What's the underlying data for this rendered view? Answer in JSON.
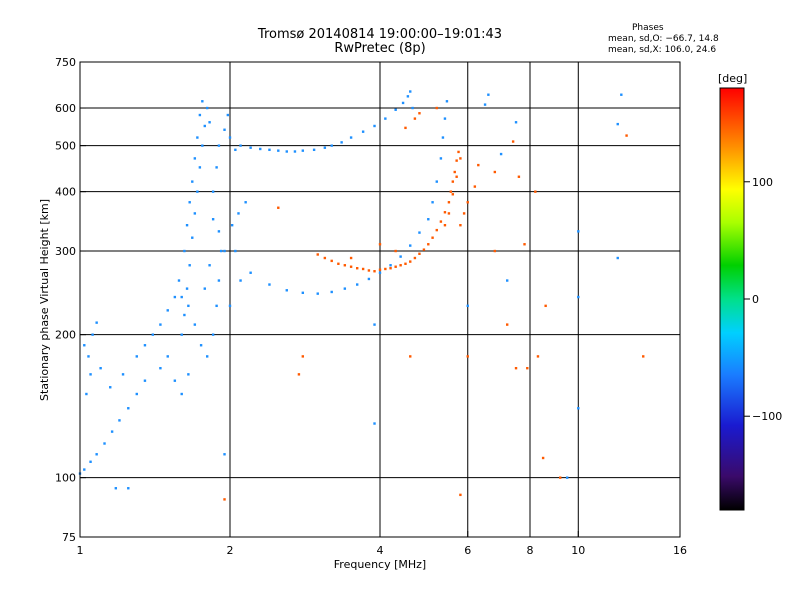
{
  "header": {
    "title_line1": "Tromsø 20140814 19:00:00–19:01:43",
    "title_line2": "RwPretec (8p)"
  },
  "stats": {
    "title": "Phases",
    "o_line": "mean, sd,O: −66.7, 14.8",
    "x_line": "mean, sd,X: 106.0, 24.6"
  },
  "chart_data": {
    "type": "scatter",
    "title": "Tromsø 20140814 19:00:00–19:01:43",
    "subtitle": "RwPretec (8p)",
    "xlabel": "Frequency [MHz]",
    "ylabel": "Stationary phase Virtual Height [km]",
    "xscale": "log",
    "yscale": "log",
    "xlim": [
      1,
      16
    ],
    "ylim": [
      75,
      750
    ],
    "x_ticks": [
      1,
      2,
      4,
      6,
      8,
      10,
      16
    ],
    "y_ticks": [
      75,
      100,
      200,
      300,
      400,
      500,
      600,
      750
    ],
    "x_gridlines": [
      2,
      4,
      6,
      8,
      10
    ],
    "y_gridlines": [
      100,
      200,
      300,
      400,
      500,
      600
    ],
    "colorbar": {
      "label": "[deg]",
      "range": [
        -180,
        180
      ],
      "ticks": [
        100,
        0,
        -100
      ],
      "colormap": "rainbow"
    },
    "series": [
      {
        "points": [
          [
            1.0,
            102
          ],
          [
            1.02,
            104
          ],
          [
            1.05,
            108
          ],
          [
            1.08,
            112
          ],
          [
            1.12,
            118
          ],
          [
            1.16,
            125
          ],
          [
            1.2,
            132
          ],
          [
            1.25,
            140
          ],
          [
            1.3,
            150
          ],
          [
            1.35,
            160
          ],
          [
            1.03,
            150
          ],
          [
            1.05,
            165
          ],
          [
            1.04,
            180
          ],
          [
            1.06,
            200
          ],
          [
            1.08,
            212
          ],
          [
            1.02,
            190
          ],
          [
            1.1,
            170
          ],
          [
            1.15,
            155
          ],
          [
            1.22,
            165
          ],
          [
            1.3,
            180
          ],
          [
            1.35,
            190
          ],
          [
            1.4,
            200
          ],
          [
            1.45,
            210
          ],
          [
            1.5,
            225
          ],
          [
            1.55,
            240
          ],
          [
            1.45,
            170
          ],
          [
            1.5,
            180
          ],
          [
            1.55,
            160
          ],
          [
            1.6,
            150
          ],
          [
            1.65,
            165
          ],
          [
            1.6,
            200
          ],
          [
            1.62,
            220
          ],
          [
            1.64,
            250
          ],
          [
            1.66,
            280
          ],
          [
            1.68,
            320
          ],
          [
            1.7,
            360
          ],
          [
            1.72,
            400
          ],
          [
            1.74,
            450
          ],
          [
            1.76,
            500
          ],
          [
            1.78,
            550
          ],
          [
            1.62,
            300
          ],
          [
            1.64,
            340
          ],
          [
            1.66,
            380
          ],
          [
            1.68,
            420
          ],
          [
            1.7,
            470
          ],
          [
            1.72,
            520
          ],
          [
            1.74,
            580
          ],
          [
            1.76,
            620
          ],
          [
            1.8,
            600
          ],
          [
            1.82,
            560
          ],
          [
            1.58,
            260
          ],
          [
            1.6,
            240
          ],
          [
            1.65,
            230
          ],
          [
            1.7,
            210
          ],
          [
            1.75,
            190
          ],
          [
            1.8,
            180
          ],
          [
            1.85,
            200
          ],
          [
            1.88,
            230
          ],
          [
            1.9,
            260
          ],
          [
            1.92,
            300
          ],
          [
            1.85,
            400
          ],
          [
            1.88,
            450
          ],
          [
            1.9,
            500
          ],
          [
            1.95,
            540
          ],
          [
            1.98,
            580
          ],
          [
            2.0,
            520
          ],
          [
            2.05,
            490
          ],
          [
            2.1,
            500
          ],
          [
            2.2,
            495
          ],
          [
            2.3,
            492
          ],
          [
            2.4,
            490
          ],
          [
            2.5,
            488
          ],
          [
            2.6,
            486
          ],
          [
            2.7,
            486
          ],
          [
            2.8,
            488
          ],
          [
            2.95,
            490
          ],
          [
            3.1,
            495
          ],
          [
            3.2,
            500
          ],
          [
            3.35,
            508
          ],
          [
            3.5,
            520
          ],
          [
            3.7,
            535
          ],
          [
            3.9,
            550
          ],
          [
            4.1,
            570
          ],
          [
            4.3,
            595
          ],
          [
            4.45,
            615
          ],
          [
            4.55,
            635
          ],
          [
            4.6,
            650
          ],
          [
            4.65,
            600
          ],
          [
            2.05,
            300
          ],
          [
            2.2,
            270
          ],
          [
            2.4,
            255
          ],
          [
            2.6,
            248
          ],
          [
            2.8,
            245
          ],
          [
            3.0,
            244
          ],
          [
            3.2,
            246
          ],
          [
            3.4,
            250
          ],
          [
            3.6,
            255
          ],
          [
            3.8,
            262
          ],
          [
            4.0,
            270
          ],
          [
            4.2,
            280
          ],
          [
            4.4,
            292
          ],
          [
            4.6,
            308
          ],
          [
            4.8,
            328
          ],
          [
            5.0,
            350
          ],
          [
            5.1,
            380
          ],
          [
            5.2,
            420
          ],
          [
            5.3,
            470
          ],
          [
            5.35,
            520
          ],
          [
            5.4,
            570
          ],
          [
            5.45,
            620
          ],
          [
            2.0,
            230
          ],
          [
            2.1,
            260
          ],
          [
            1.95,
            300
          ],
          [
            2.02,
            340
          ],
          [
            2.08,
            360
          ],
          [
            2.15,
            380
          ],
          [
            1.9,
            330
          ],
          [
            1.85,
            350
          ],
          [
            1.82,
            280
          ],
          [
            1.78,
            250
          ],
          [
            10.0,
            330
          ],
          [
            10.0,
            240
          ],
          [
            10.0,
            140
          ],
          [
            9.5,
            100
          ],
          [
            6.5,
            610
          ],
          [
            6.6,
            640
          ],
          [
            7.0,
            480
          ],
          [
            7.2,
            260
          ],
          [
            6.0,
            230
          ],
          [
            3.9,
            210
          ],
          [
            3.9,
            130
          ],
          [
            1.95,
            112
          ],
          [
            1.25,
            95
          ],
          [
            1.18,
            95
          ],
          [
            12.0,
            290
          ],
          [
            12.2,
            640
          ],
          [
            12.0,
            555
          ],
          [
            7.5,
            560
          ]
        ]
      },
      {
        "points": [
          [
            3.0,
            295
          ],
          [
            3.1,
            290
          ],
          [
            3.2,
            286
          ],
          [
            3.3,
            282
          ],
          [
            3.4,
            280
          ],
          [
            3.5,
            278
          ],
          [
            3.6,
            276
          ],
          [
            3.7,
            275
          ],
          [
            3.8,
            273
          ],
          [
            3.9,
            272
          ],
          [
            4.0,
            274
          ],
          [
            4.1,
            275
          ],
          [
            4.2,
            276
          ],
          [
            4.3,
            278
          ],
          [
            4.4,
            280
          ],
          [
            4.5,
            282
          ],
          [
            4.6,
            285
          ],
          [
            4.7,
            290
          ],
          [
            4.8,
            296
          ],
          [
            4.9,
            302
          ],
          [
            5.0,
            310
          ],
          [
            5.1,
            320
          ],
          [
            5.2,
            332
          ],
          [
            5.3,
            346
          ],
          [
            5.4,
            362
          ],
          [
            5.5,
            380
          ],
          [
            5.55,
            400
          ],
          [
            5.6,
            420
          ],
          [
            5.65,
            440
          ],
          [
            5.7,
            465
          ],
          [
            5.75,
            485
          ],
          [
            5.8,
            470
          ],
          [
            5.7,
            430
          ],
          [
            5.6,
            395
          ],
          [
            5.5,
            360
          ],
          [
            5.4,
            340
          ],
          [
            4.8,
            585
          ],
          [
            4.7,
            570
          ],
          [
            4.5,
            545
          ],
          [
            5.2,
            600
          ],
          [
            2.8,
            180
          ],
          [
            2.75,
            165
          ],
          [
            3.5,
            290
          ],
          [
            4.3,
            300
          ],
          [
            4.0,
            310
          ],
          [
            6.3,
            455
          ],
          [
            6.2,
            410
          ],
          [
            6.0,
            380
          ],
          [
            5.9,
            360
          ],
          [
            5.8,
            340
          ],
          [
            7.4,
            510
          ],
          [
            7.6,
            430
          ],
          [
            7.8,
            310
          ],
          [
            7.9,
            170
          ],
          [
            8.3,
            180
          ],
          [
            8.5,
            110
          ],
          [
            9.2,
            100
          ],
          [
            6.8,
            440
          ],
          [
            4.6,
            180
          ],
          [
            6.0,
            180
          ],
          [
            7.5,
            170
          ],
          [
            1.95,
            90
          ],
          [
            5.8,
            92
          ],
          [
            13.5,
            180
          ],
          [
            12.5,
            525
          ],
          [
            2.5,
            370
          ],
          [
            8.2,
            400
          ],
          [
            8.6,
            230
          ],
          [
            7.2,
            210
          ],
          [
            6.8,
            300
          ]
        ]
      }
    ]
  }
}
